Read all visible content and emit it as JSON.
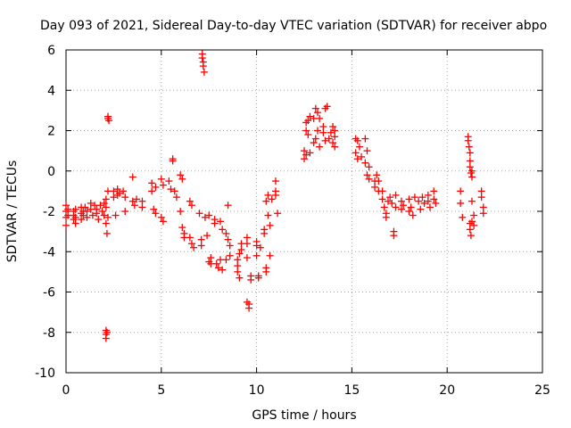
{
  "chart_data": {
    "type": "scatter",
    "title": "Day 093 of 2021, Sidereal Day-to-day VTEC variation (SDTVAR) for receiver abpo",
    "xlabel": "GPS time / hours",
    "ylabel": "SDTVAR / TECUs",
    "xlim": [
      0,
      25
    ],
    "ylim": [
      -10,
      6
    ],
    "xticks": [
      0,
      5,
      10,
      15,
      20,
      25
    ],
    "yticks": [
      -10,
      -8,
      -6,
      -4,
      -2,
      0,
      2,
      4,
      6
    ],
    "xtick_labels": [
      "0",
      "5",
      "10",
      "15",
      "20",
      "25"
    ],
    "ytick_labels": [
      "-10",
      "-8",
      "-6",
      "-4",
      "-2",
      "0",
      "2",
      "4",
      "6"
    ],
    "grid": true,
    "marker": "+",
    "color": "#ff0000",
    "series": [
      {
        "name": "SDTVAR",
        "points": [
          [
            0.0,
            -1.7
          ],
          [
            0.0,
            -2.0
          ],
          [
            0.0,
            -2.3
          ],
          [
            0.0,
            -2.7
          ],
          [
            0.1,
            -1.9
          ],
          [
            0.1,
            -2.2
          ],
          [
            0.4,
            -2.0
          ],
          [
            0.4,
            -2.2
          ],
          [
            0.4,
            -2.4
          ],
          [
            0.5,
            -1.9
          ],
          [
            0.5,
            -2.3
          ],
          [
            0.5,
            -2.6
          ],
          [
            0.8,
            -1.8
          ],
          [
            0.8,
            -2.1
          ],
          [
            0.8,
            -2.4
          ],
          [
            0.9,
            -2.0
          ],
          [
            0.9,
            -2.2
          ],
          [
            1.0,
            -1.8
          ],
          [
            1.1,
            -2.0
          ],
          [
            1.1,
            -2.3
          ],
          [
            1.3,
            -1.6
          ],
          [
            1.3,
            -1.9
          ],
          [
            1.4,
            -2.2
          ],
          [
            1.5,
            -1.7
          ],
          [
            1.6,
            -1.9
          ],
          [
            1.6,
            -2.1
          ],
          [
            1.7,
            -2.4
          ],
          [
            1.8,
            -1.7
          ],
          [
            1.9,
            -2.0
          ],
          [
            2.0,
            -1.6
          ],
          [
            2.0,
            -2.2
          ],
          [
            2.1,
            -1.4
          ],
          [
            2.1,
            -1.8
          ],
          [
            2.1,
            -2.6
          ],
          [
            2.15,
            -3.1
          ],
          [
            2.2,
            -1.0
          ],
          [
            2.2,
            -2.3
          ],
          [
            2.1,
            -7.9
          ],
          [
            2.1,
            -8.1
          ],
          [
            2.1,
            -8.3
          ],
          [
            2.15,
            -8.0
          ],
          [
            2.2,
            2.7
          ],
          [
            2.2,
            2.6
          ],
          [
            2.25,
            2.5
          ],
          [
            2.5,
            -1.0
          ],
          [
            2.5,
            -1.3
          ],
          [
            2.6,
            -2.2
          ],
          [
            2.7,
            -0.9
          ],
          [
            2.7,
            -1.2
          ],
          [
            2.8,
            -1.1
          ],
          [
            3.0,
            -1.0
          ],
          [
            3.1,
            -1.3
          ],
          [
            3.1,
            -2.0
          ],
          [
            3.5,
            -0.3
          ],
          [
            3.5,
            -1.5
          ],
          [
            3.6,
            -1.7
          ],
          [
            3.7,
            -1.4
          ],
          [
            4.0,
            -1.5
          ],
          [
            4.0,
            -1.8
          ],
          [
            4.5,
            -0.6
          ],
          [
            4.5,
            -1.0
          ],
          [
            4.6,
            -1.9
          ],
          [
            4.7,
            -0.8
          ],
          [
            4.7,
            -2.1
          ],
          [
            5.0,
            -0.4
          ],
          [
            5.0,
            -2.3
          ],
          [
            5.1,
            -0.7
          ],
          [
            5.1,
            -2.5
          ],
          [
            5.4,
            -0.5
          ],
          [
            5.5,
            -0.9
          ],
          [
            5.6,
            0.6
          ],
          [
            5.6,
            0.5
          ],
          [
            5.7,
            -1.0
          ],
          [
            5.8,
            -1.3
          ],
          [
            6.0,
            -0.2
          ],
          [
            6.0,
            -2.0
          ],
          [
            6.1,
            -0.4
          ],
          [
            6.1,
            -2.8
          ],
          [
            6.2,
            -3.1
          ],
          [
            6.2,
            -3.3
          ],
          [
            6.5,
            -1.5
          ],
          [
            6.5,
            -3.3
          ],
          [
            6.6,
            -1.7
          ],
          [
            6.6,
            -3.6
          ],
          [
            6.7,
            -3.8
          ],
          [
            7.0,
            -2.1
          ],
          [
            7.1,
            -3.4
          ],
          [
            7.1,
            -3.7
          ],
          [
            7.15,
            5.8
          ],
          [
            7.15,
            5.6
          ],
          [
            7.2,
            5.4
          ],
          [
            7.2,
            5.2
          ],
          [
            7.25,
            4.9
          ],
          [
            7.3,
            -2.3
          ],
          [
            7.4,
            -3.2
          ],
          [
            7.5,
            -2.2
          ],
          [
            7.5,
            -4.5
          ],
          [
            7.6,
            -4.6
          ],
          [
            7.6,
            -4.3
          ],
          [
            7.8,
            -2.4
          ],
          [
            7.8,
            -2.6
          ],
          [
            7.9,
            -4.6
          ],
          [
            8.0,
            -4.8
          ],
          [
            8.1,
            -2.5
          ],
          [
            8.1,
            -4.4
          ],
          [
            8.2,
            -2.9
          ],
          [
            8.2,
            -4.9
          ],
          [
            8.4,
            -3.1
          ],
          [
            8.4,
            -4.4
          ],
          [
            8.5,
            -3.4
          ],
          [
            8.5,
            -1.7
          ],
          [
            8.6,
            -3.7
          ],
          [
            8.6,
            -4.2
          ],
          [
            9.0,
            -4.4
          ],
          [
            9.0,
            -4.7
          ],
          [
            9.0,
            -5.0
          ],
          [
            9.1,
            -5.3
          ],
          [
            9.1,
            -4.1
          ],
          [
            9.2,
            -3.6
          ],
          [
            9.2,
            -3.9
          ],
          [
            9.5,
            -3.3
          ],
          [
            9.5,
            -3.6
          ],
          [
            9.5,
            -4.3
          ],
          [
            9.5,
            -6.5
          ],
          [
            9.6,
            -6.8
          ],
          [
            9.6,
            -6.6
          ],
          [
            9.7,
            -5.2
          ],
          [
            9.7,
            -5.4
          ],
          [
            10.0,
            -3.5
          ],
          [
            10.0,
            -3.7
          ],
          [
            10.0,
            -4.2
          ],
          [
            10.1,
            -5.2
          ],
          [
            10.1,
            -5.3
          ],
          [
            10.2,
            -3.8
          ],
          [
            10.4,
            -2.9
          ],
          [
            10.4,
            -3.1
          ],
          [
            10.5,
            -4.8
          ],
          [
            10.5,
            -5.0
          ],
          [
            10.5,
            -1.5
          ],
          [
            10.6,
            -1.2
          ],
          [
            10.6,
            -2.2
          ],
          [
            10.7,
            -2.7
          ],
          [
            10.7,
            -4.2
          ],
          [
            10.8,
            -1.4
          ],
          [
            11.0,
            -0.5
          ],
          [
            11.0,
            -1.0
          ],
          [
            11.0,
            -1.2
          ],
          [
            11.1,
            -2.1
          ],
          [
            12.5,
            1.0
          ],
          [
            12.5,
            0.6
          ],
          [
            12.6,
            0.8
          ],
          [
            12.6,
            2.4
          ],
          [
            12.6,
            2.0
          ],
          [
            12.7,
            1.8
          ],
          [
            12.7,
            2.5
          ],
          [
            12.8,
            0.9
          ],
          [
            12.8,
            2.7
          ],
          [
            13.0,
            1.4
          ],
          [
            13.0,
            2.6
          ],
          [
            13.1,
            3.1
          ],
          [
            13.1,
            1.6
          ],
          [
            13.2,
            2.0
          ],
          [
            13.2,
            2.9
          ],
          [
            13.3,
            1.2
          ],
          [
            13.3,
            2.6
          ],
          [
            13.5,
            1.9
          ],
          [
            13.5,
            2.2
          ],
          [
            13.6,
            1.5
          ],
          [
            13.6,
            3.1
          ],
          [
            13.7,
            3.2
          ],
          [
            13.8,
            1.6
          ],
          [
            13.9,
            1.9
          ],
          [
            14.0,
            1.4
          ],
          [
            14.0,
            2.2
          ],
          [
            14.1,
            1.7
          ],
          [
            14.1,
            2.0
          ],
          [
            14.1,
            1.2
          ],
          [
            15.2,
            1.6
          ],
          [
            15.2,
            0.9
          ],
          [
            15.3,
            0.6
          ],
          [
            15.3,
            1.5
          ],
          [
            15.4,
            1.2
          ],
          [
            15.5,
            0.7
          ],
          [
            15.7,
            0.4
          ],
          [
            15.7,
            1.6
          ],
          [
            15.8,
            1.0
          ],
          [
            15.8,
            -0.2
          ],
          [
            15.9,
            -0.4
          ],
          [
            15.9,
            0.2
          ],
          [
            16.2,
            -0.5
          ],
          [
            16.2,
            -0.8
          ],
          [
            16.3,
            -0.2
          ],
          [
            16.4,
            -0.5
          ],
          [
            16.4,
            -1.0
          ],
          [
            16.6,
            -1.4
          ],
          [
            16.6,
            -1.0
          ],
          [
            16.7,
            -1.8
          ],
          [
            16.8,
            -2.1
          ],
          [
            16.8,
            -2.3
          ],
          [
            16.9,
            -1.5
          ],
          [
            17.0,
            -1.3
          ],
          [
            17.1,
            -1.6
          ],
          [
            17.2,
            -3.0
          ],
          [
            17.2,
            -3.2
          ],
          [
            17.3,
            -1.8
          ],
          [
            17.3,
            -1.2
          ],
          [
            17.6,
            -1.5
          ],
          [
            17.6,
            -1.9
          ],
          [
            17.7,
            -1.7
          ],
          [
            18.0,
            -1.4
          ],
          [
            18.0,
            -2.0
          ],
          [
            18.1,
            -1.8
          ],
          [
            18.2,
            -2.2
          ],
          [
            18.3,
            -1.3
          ],
          [
            18.5,
            -1.5
          ],
          [
            18.6,
            -1.9
          ],
          [
            18.7,
            -1.3
          ],
          [
            18.8,
            -1.6
          ],
          [
            19.0,
            -1.2
          ],
          [
            19.0,
            -1.5
          ],
          [
            19.1,
            -1.8
          ],
          [
            19.3,
            -1.0
          ],
          [
            19.3,
            -1.4
          ],
          [
            19.4,
            -1.6
          ],
          [
            20.7,
            -1.0
          ],
          [
            20.7,
            -1.6
          ],
          [
            20.8,
            -2.3
          ],
          [
            21.1,
            1.7
          ],
          [
            21.1,
            1.5
          ],
          [
            21.15,
            1.2
          ],
          [
            21.2,
            0.9
          ],
          [
            21.2,
            0.5
          ],
          [
            21.2,
            0.2
          ],
          [
            21.25,
            -0.1
          ],
          [
            21.3,
            0.0
          ],
          [
            21.3,
            -0.3
          ],
          [
            21.2,
            -2.6
          ],
          [
            21.2,
            -2.9
          ],
          [
            21.25,
            -3.2
          ],
          [
            21.3,
            -2.5
          ],
          [
            21.3,
            -1.5
          ],
          [
            21.4,
            -2.2
          ],
          [
            21.4,
            -2.7
          ],
          [
            21.8,
            -1.0
          ],
          [
            21.8,
            -1.3
          ],
          [
            21.9,
            -1.8
          ],
          [
            21.9,
            -2.1
          ]
        ]
      }
    ]
  }
}
